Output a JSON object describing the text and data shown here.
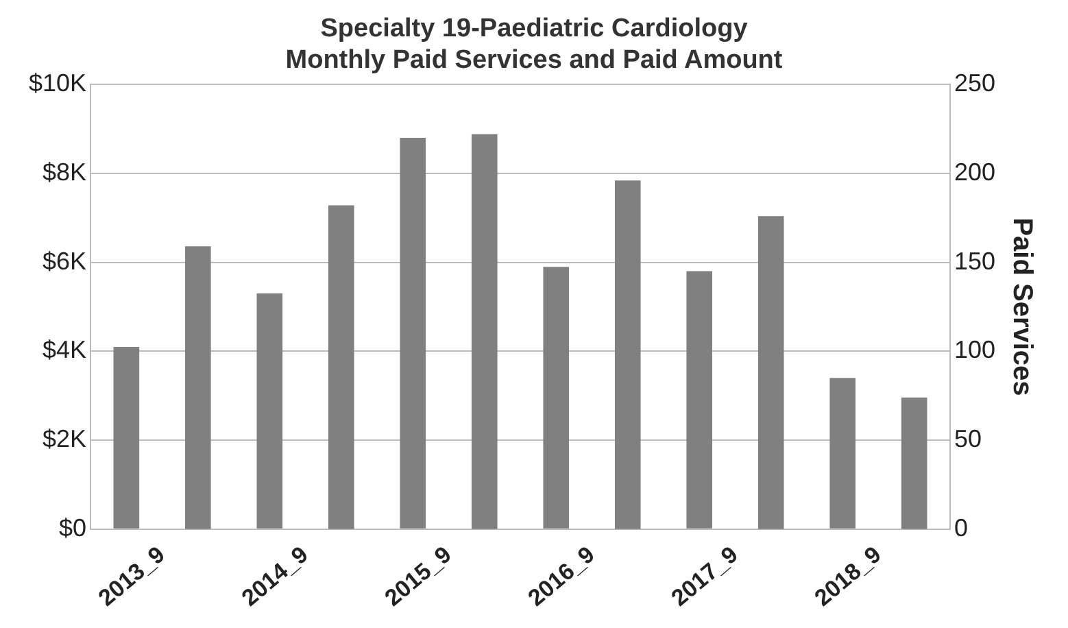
{
  "chart_data": {
    "type": "bar",
    "title": "Specialty 19-Paediatric Cardiology",
    "subtitle": "Monthly Paid Services and Paid Amount",
    "y2label": "Paid Services",
    "categories": [
      "2013_9",
      "2014_9",
      "2015_9",
      "2016_9",
      "2017_9",
      "2018_9"
    ],
    "series": [
      {
        "color": "#808080",
        "values": [
          4100,
          5300,
          8800,
          5900,
          5800,
          3400
        ]
      },
      {
        "color": "#808080",
        "axis": "y2",
        "values": [
          159,
          182,
          222,
          196,
          176,
          74
        ]
      }
    ],
    "ylim": [
      0,
      10000
    ],
    "yticks": [
      {
        "value": 0,
        "label": "$0"
      },
      {
        "value": 2000,
        "label": "$2K"
      },
      {
        "value": 4000,
        "label": "$4K"
      },
      {
        "value": 6000,
        "label": "$6K"
      },
      {
        "value": 8000,
        "label": "$8K"
      },
      {
        "value": 10000,
        "label": "$10K"
      }
    ],
    "y2lim": [
      0,
      250
    ],
    "y2ticks": [
      0,
      50,
      100,
      150,
      200,
      250
    ],
    "grid": "y",
    "legend": false
  }
}
